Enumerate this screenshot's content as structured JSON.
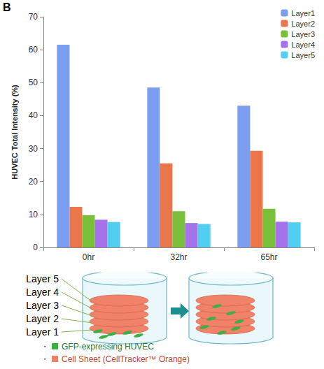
{
  "panel_label": "B",
  "chart_data": {
    "type": "bar",
    "categories": [
      "0hr",
      "32hr",
      "65hr"
    ],
    "series": [
      {
        "name": "Layer1",
        "color": "#7b9ef0",
        "values": [
          61.5,
          48.5,
          43.0
        ]
      },
      {
        "name": "Layer2",
        "color": "#ea774c",
        "values": [
          12.3,
          25.5,
          29.3
        ]
      },
      {
        "name": "Layer3",
        "color": "#79bf3a",
        "values": [
          9.8,
          11.0,
          11.7
        ]
      },
      {
        "name": "Layer4",
        "color": "#a672ec",
        "values": [
          8.4,
          7.4,
          7.8
        ]
      },
      {
        "name": "Layer5",
        "color": "#52cff0",
        "values": [
          7.7,
          7.1,
          7.6
        ]
      }
    ],
    "y_label": "HUVEC Total Intensity (%)",
    "ylim": [
      0,
      70
    ],
    "yticks": [
      0,
      10,
      20,
      30,
      40,
      50,
      60,
      70
    ],
    "grid": false,
    "legend": "top-right"
  },
  "diagram": {
    "layers": [
      "Layer 5",
      "Layer 4",
      "Layer 3",
      "Layer 2",
      "Layer 1"
    ],
    "legend": [
      {
        "bullet": "・",
        "label": "GFP-expressing HUVEC",
        "color": "#3cb043"
      },
      {
        "bullet": "・",
        "label": "Cell Sheet (CellTracker™ Orange)",
        "color": "#f0826a"
      }
    ]
  }
}
